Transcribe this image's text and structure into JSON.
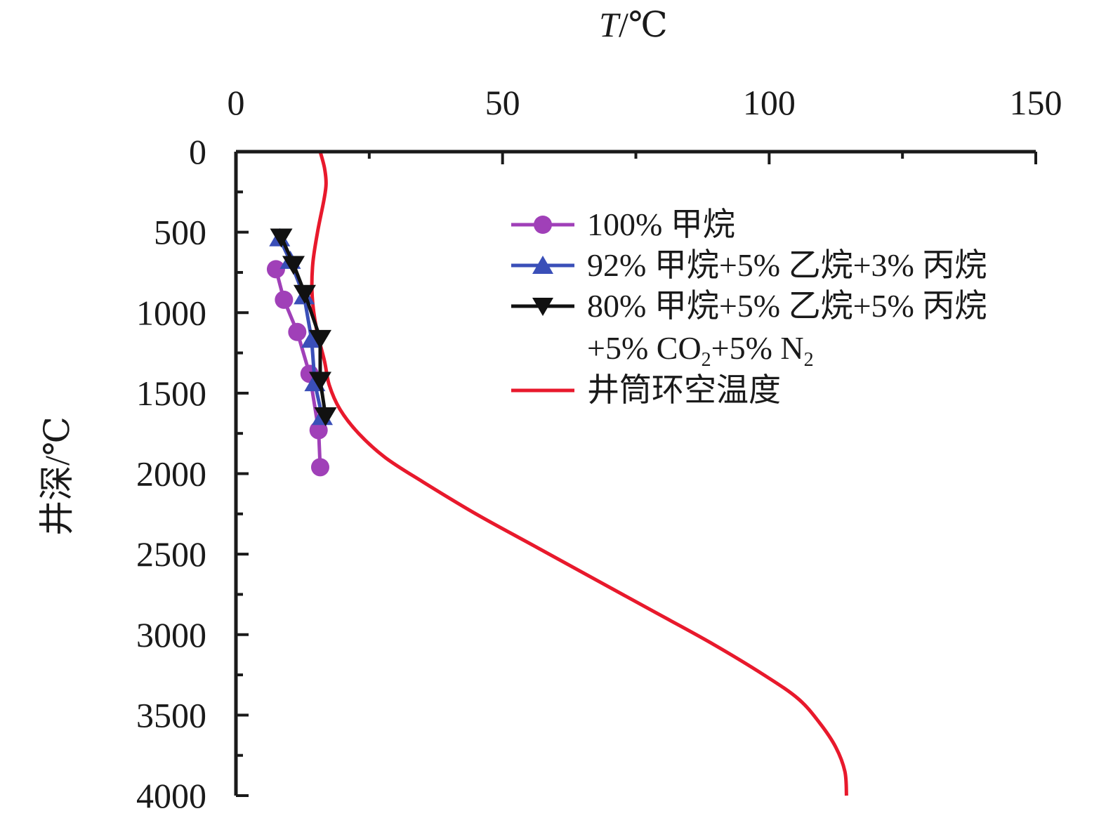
{
  "chart_data": {
    "type": "line",
    "xlabel_italic": "T",
    "xlabel_unit": "/℃",
    "ylabel": "井深/℃",
    "xlim": [
      0,
      150
    ],
    "ylim": [
      0,
      4000
    ],
    "y_inverted": true,
    "x_axis_position": "top",
    "x_ticks": [
      0,
      50,
      100,
      150
    ],
    "y_ticks": [
      0,
      500,
      1000,
      1500,
      2000,
      2500,
      3000,
      3500,
      4000
    ],
    "legend_position": "top-right",
    "series": [
      {
        "name": "100% 甲烷",
        "color": "#a040b8",
        "marker": "circle",
        "x": [
          7.5,
          9.0,
          11.5,
          13.8,
          15.5,
          15.8
        ],
        "y": [
          730,
          920,
          1120,
          1380,
          1730,
          1960
        ]
      },
      {
        "name": "92% 甲烷+5% 乙烷+3% 丙烷",
        "color": "#3a4fb8",
        "marker": "triangle-up",
        "x": [
          8.2,
          10.2,
          12.8,
          14.2,
          14.8,
          16.2
        ],
        "y": [
          540,
          680,
          900,
          1170,
          1440,
          1650
        ]
      },
      {
        "name_line1": "80% 甲烷+5% 乙烷+5% 丙烷",
        "name_line2_a": "+5% CO",
        "name_line2_sub1": "2",
        "name_line2_b": "+5% N",
        "name_line2_sub2": "2",
        "color": "#111111",
        "marker": "triangle-down",
        "x": [
          8.5,
          10.8,
          12.9,
          15.8,
          15.8,
          16.8
        ],
        "y": [
          530,
          700,
          880,
          1160,
          1420,
          1640
        ]
      },
      {
        "name": "井筒环空温度",
        "color": "#e8192c",
        "marker": "none",
        "x": [
          15.8,
          16.6,
          16.9,
          16.5,
          15.3,
          14.4,
          14.3,
          15.1,
          16.6,
          17.5,
          19.5,
          23.0,
          28.0,
          35.0,
          45.0,
          56.0,
          67.0,
          78.0,
          89.0,
          99.0,
          105.5,
          109.5,
          112.5,
          114.2,
          114.5
        ],
        "y": [
          0,
          100,
          200,
          300,
          500,
          700,
          900,
          1100,
          1300,
          1450,
          1600,
          1750,
          1900,
          2050,
          2250,
          2450,
          2650,
          2850,
          3050,
          3250,
          3400,
          3550,
          3700,
          3850,
          4000
        ]
      }
    ]
  }
}
